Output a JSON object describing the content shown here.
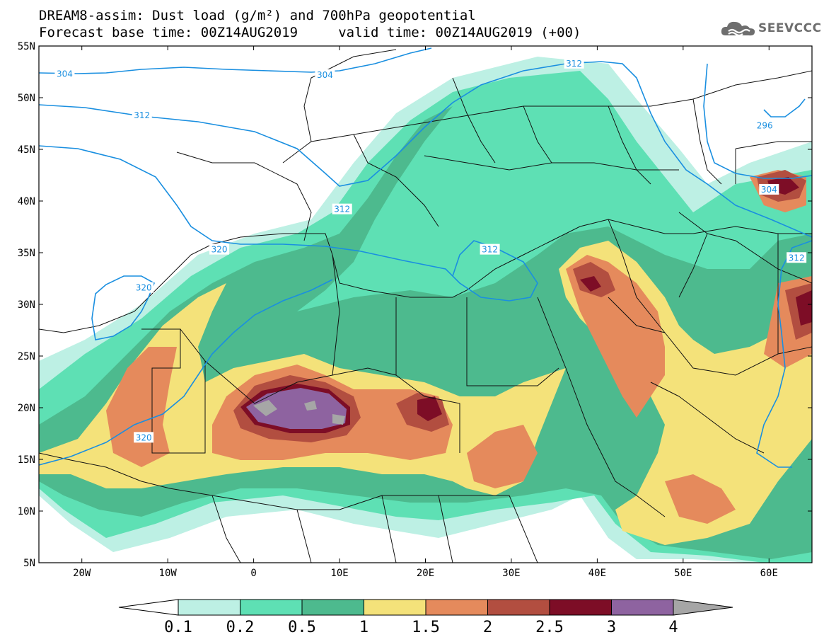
{
  "title": {
    "line1": "DREAM8-assim: Dust load (g/m²) and 700hPa geopotential",
    "line2": "Forecast base time: 00Z14AUG2019     valid time: 00Z14AUG2019 (+00)"
  },
  "logo": {
    "text": "SEEVCCC",
    "icon": "cloud-logo-icon"
  },
  "map": {
    "lon_range": [
      -25,
      65
    ],
    "lat_range": [
      5,
      55
    ],
    "lat_ticks": [
      {
        "value": 55,
        "label": "55N"
      },
      {
        "value": 50,
        "label": "50N"
      },
      {
        "value": 45,
        "label": "45N"
      },
      {
        "value": 40,
        "label": "40N"
      },
      {
        "value": 35,
        "label": "35N"
      },
      {
        "value": 30,
        "label": "30N"
      },
      {
        "value": 25,
        "label": "25N"
      },
      {
        "value": 20,
        "label": "20N"
      },
      {
        "value": 15,
        "label": "15N"
      },
      {
        "value": 10,
        "label": "10N"
      },
      {
        "value": 5,
        "label": "5N"
      }
    ],
    "lon_ticks": [
      {
        "value": -20,
        "label": "20W"
      },
      {
        "value": -10,
        "label": "10W"
      },
      {
        "value": 0,
        "label": "0"
      },
      {
        "value": 10,
        "label": "10E"
      },
      {
        "value": 20,
        "label": "20E"
      },
      {
        "value": 30,
        "label": "30E"
      },
      {
        "value": 40,
        "label": "40E"
      },
      {
        "value": 50,
        "label": "50E"
      },
      {
        "value": 60,
        "label": "60E"
      }
    ],
    "contour_labels": [
      {
        "text": "304",
        "lon": -22,
        "lat": 52.3
      },
      {
        "text": "304",
        "lon": 8.3,
        "lat": 52.2
      },
      {
        "text": "312",
        "lon": 37.3,
        "lat": 53.3
      },
      {
        "text": "312",
        "lon": -13,
        "lat": 48.3
      },
      {
        "text": "296",
        "lon": 59.5,
        "lat": 47.3
      },
      {
        "text": "304",
        "lon": 60,
        "lat": 41.1
      },
      {
        "text": "312",
        "lon": 10.3,
        "lat": 39.2
      },
      {
        "text": "320",
        "lon": -4,
        "lat": 35.3
      },
      {
        "text": "312",
        "lon": 27.5,
        "lat": 35.3
      },
      {
        "text": "312",
        "lon": 63.2,
        "lat": 34.5
      },
      {
        "text": "320",
        "lon": -12.8,
        "lat": 31.6
      },
      {
        "text": "320",
        "lon": -12.8,
        "lat": 17.1
      }
    ]
  },
  "colorbar": {
    "levels": [
      "0.1",
      "0.2",
      "0.5",
      "1",
      "1.5",
      "2",
      "2.5",
      "3",
      "4"
    ],
    "colors": [
      "#ffffff",
      "#bdf0e4",
      "#5ee0b4",
      "#4dba8e",
      "#f4e27a",
      "#e58a5c",
      "#b24e40",
      "#7d0d26",
      "#8e63a0",
      "#a6a6a6"
    ]
  },
  "palette": {
    "contour_color": "#1a8fe0",
    "border_color": "#111111"
  }
}
